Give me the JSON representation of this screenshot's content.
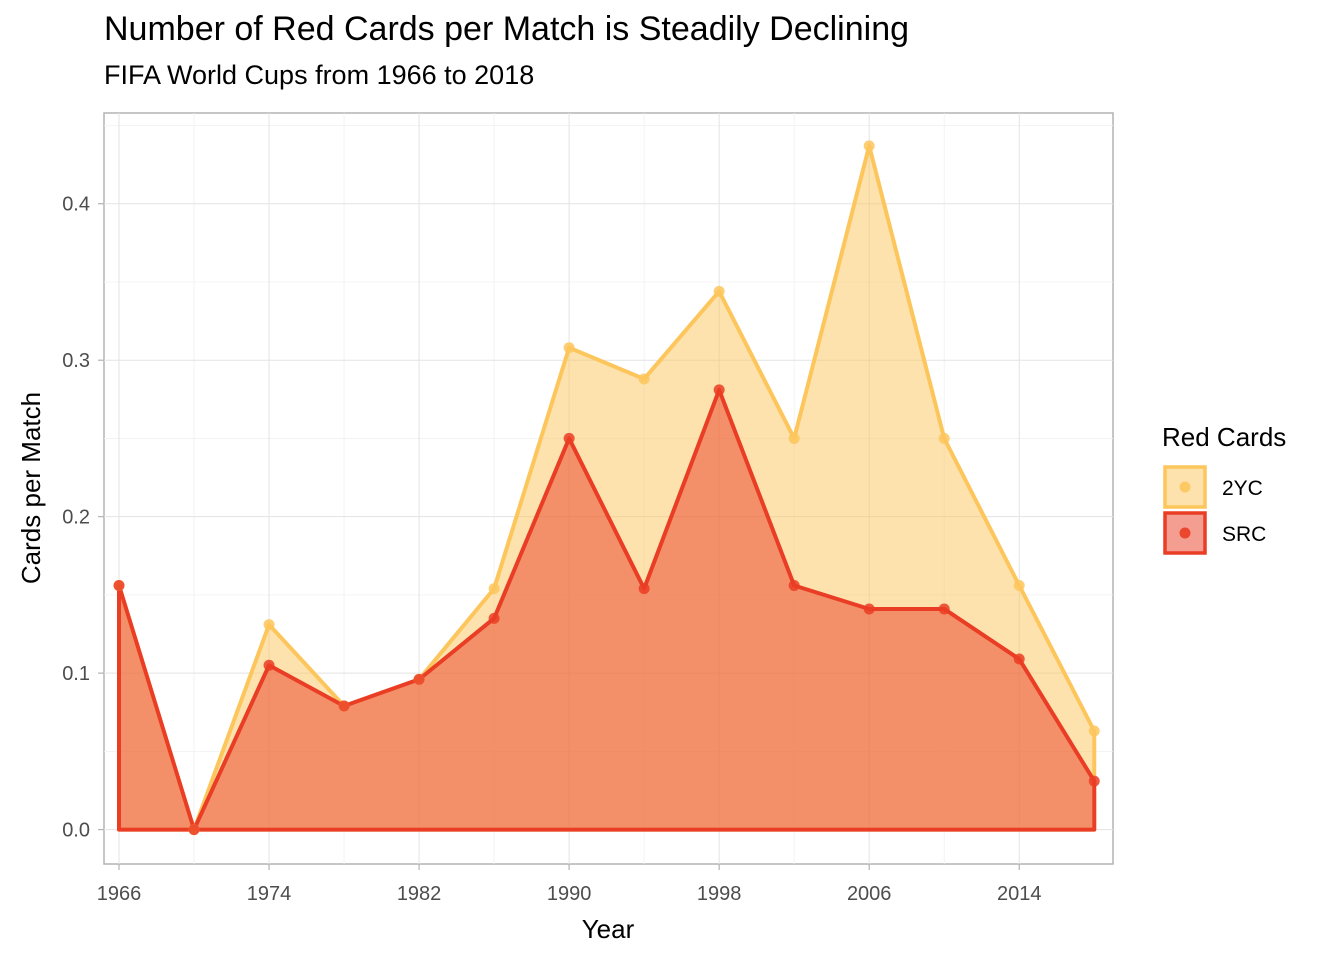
{
  "chart_data": {
    "type": "area",
    "title": "Number of Red Cards per Match is Steadily Declining",
    "subtitle": "FIFA World Cups from 1966 to 2018",
    "xlabel": "Year",
    "ylabel": "Cards per Match",
    "xlim": [
      1965.2,
      2019.0
    ],
    "ylim": [
      -0.022,
      0.458
    ],
    "x_ticks": [
      "1966",
      "1974",
      "1982",
      "1990",
      "1998",
      "2006",
      "2014"
    ],
    "y_ticks": [
      "0.0",
      "0.1",
      "0.2",
      "0.3",
      "0.4"
    ],
    "grid": true,
    "legend": {
      "title": "Red Cards",
      "position": "right",
      "entries": [
        "2YC",
        "SRC"
      ]
    },
    "colors": {
      "2YC": "#fdc65c",
      "SRC": "#ea3d25"
    },
    "x": [
      1966,
      1970,
      1974,
      1978,
      1982,
      1986,
      1990,
      1994,
      1998,
      2002,
      2006,
      2010,
      2014,
      2018
    ],
    "series": [
      {
        "name": "2YC",
        "values": [
          0.156,
          0.0,
          0.131,
          0.079,
          0.096,
          0.154,
          0.308,
          0.288,
          0.344,
          0.25,
          0.437,
          0.25,
          0.156,
          0.063
        ]
      },
      {
        "name": "SRC",
        "values": [
          0.156,
          0.0,
          0.105,
          0.079,
          0.096,
          0.135,
          0.25,
          0.154,
          0.281,
          0.156,
          0.141,
          0.141,
          0.109,
          0.031
        ]
      }
    ]
  }
}
